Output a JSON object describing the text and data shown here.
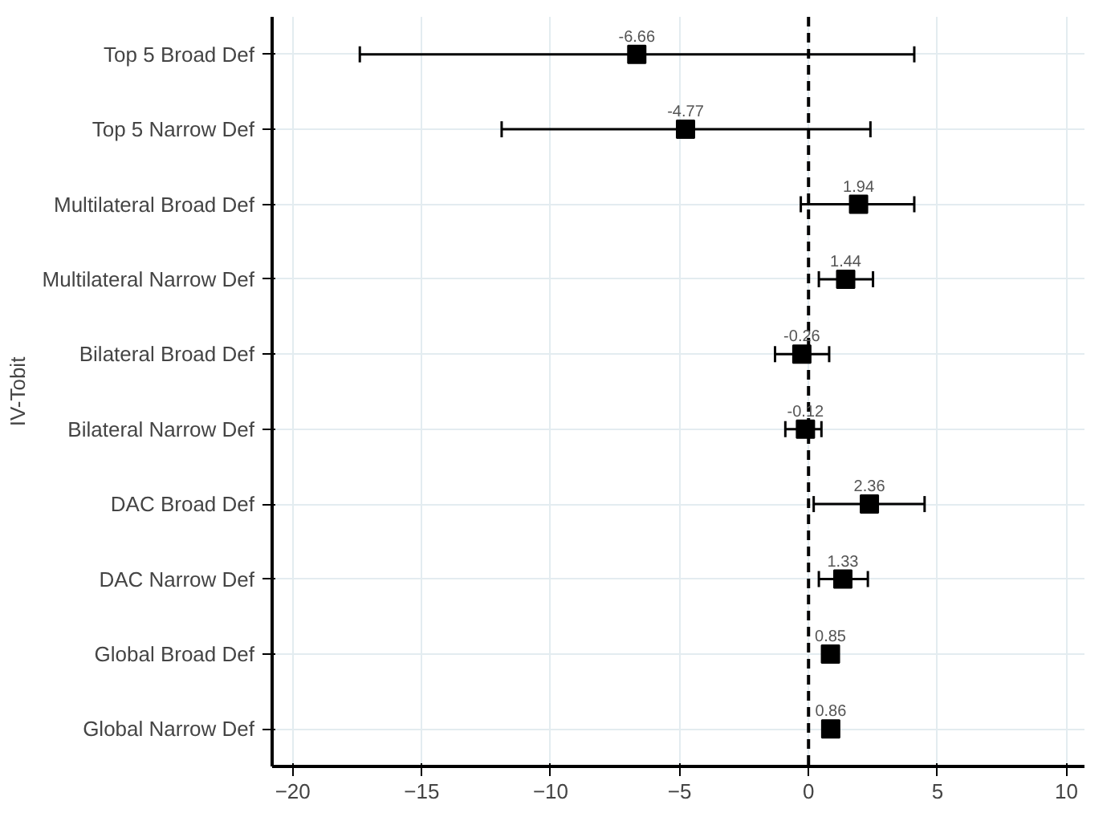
{
  "chart_data": {
    "type": "scatter",
    "orientation": "horizontal",
    "ylabel": "IV-Tobit",
    "categories": [
      "Top 5 Broad Def",
      "Top 5 Narrow Def",
      "Multilateral Broad Def",
      "Multilateral Narrow Def",
      "Bilateral Broad Def",
      "Bilateral Narrow Def",
      "DAC Broad Def",
      "DAC Narrow Def",
      "Global Broad Def",
      "Global Narrow Def"
    ],
    "values": [
      -6.66,
      -4.77,
      1.94,
      1.44,
      -0.26,
      -0.12,
      2.36,
      1.33,
      0.85,
      0.86
    ],
    "errors": [
      [
        -17.4,
        4.1
      ],
      [
        -11.9,
        2.4
      ],
      [
        -0.3,
        4.1
      ],
      [
        0.4,
        2.5
      ],
      [
        -1.3,
        0.8
      ],
      [
        -0.9,
        0.5
      ],
      [
        0.2,
        4.5
      ],
      [
        0.4,
        2.3
      ],
      null,
      null
    ],
    "color": "#000000",
    "marker": "square",
    "data_labels": true,
    "xlim": [
      -20.8,
      10.7
    ],
    "xticks": [
      -20,
      -15,
      -10,
      -5,
      0,
      5,
      10
    ],
    "ref_lines": [
      {
        "axis": "x",
        "value": 0,
        "line_style": "dashed",
        "color": "#000000"
      }
    ],
    "grid": true
  }
}
